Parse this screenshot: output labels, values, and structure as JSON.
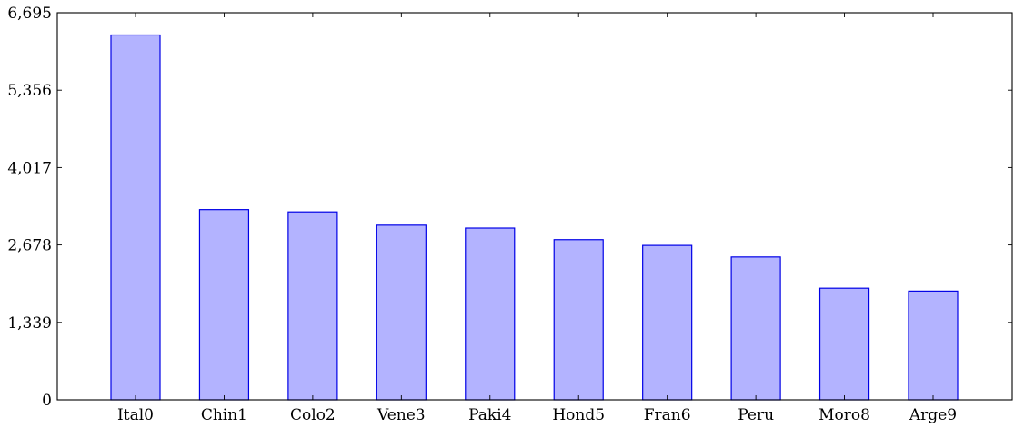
{
  "chart_data": {
    "type": "bar",
    "title": "",
    "xlabel": "",
    "ylabel": "",
    "categories": [
      "Ital0",
      "Chin1",
      "Colo2",
      "Vene3",
      "Paki4",
      "Hond5",
      "Fran6",
      "Peru",
      "Moro8",
      "Arge9"
    ],
    "values": [
      6310,
      3290,
      3250,
      3020,
      2970,
      2770,
      2670,
      2470,
      1930,
      1880
    ],
    "ylim": [
      0,
      6695
    ],
    "yticks": [
      0,
      1339,
      2678,
      4017,
      5356,
      6695
    ],
    "ytick_labels": [
      "0",
      "1,339",
      "2,678",
      "4,017",
      "5,356",
      "6,695"
    ],
    "grid": false,
    "colors": {
      "bar_fill": "#b3b3ff",
      "bar_stroke": "#0000e6",
      "axis": "#000000"
    }
  }
}
